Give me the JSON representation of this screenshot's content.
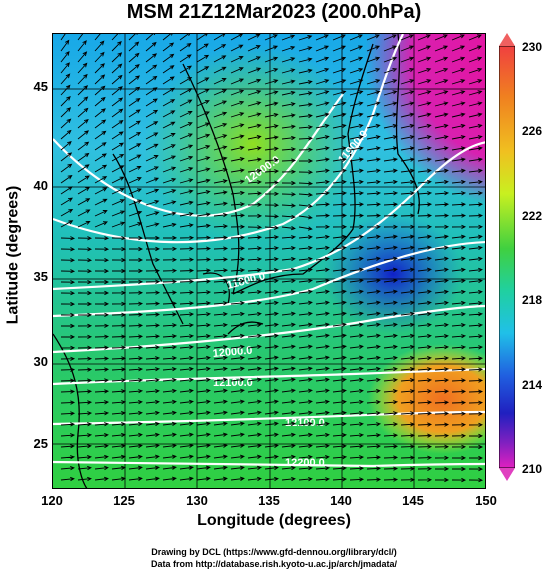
{
  "title": "MSM 21Z12Mar2023 (200.0hPa)",
  "xaxis": {
    "label": "Longitude (degrees)",
    "ticks": [
      "120",
      "125",
      "130",
      "135",
      "140",
      "145",
      "150"
    ]
  },
  "yaxis": {
    "label": "Latitude  (degrees)",
    "ticks": [
      "45",
      "40",
      "35",
      "30",
      "25"
    ]
  },
  "colorbar": {
    "ticks": [
      "230",
      "226",
      "222",
      "218",
      "214",
      "210"
    ]
  },
  "contour_labels": [
    "12000.0",
    "11900.0",
    "11800.0",
    "12000.0",
    "12100.0",
    "12100.0",
    "12200.0"
  ],
  "credits": {
    "line1": "Drawing by DCL (https://www.gfd-dennou.org/library/dcl/)",
    "line2": "Data from http://database.rish.kyoto-u.ac.jp/arch/jmadata/"
  },
  "colors": {
    "magenta": "#e8109c",
    "blue": "#1a2ad8",
    "cyan": "#18c8e8",
    "green": "#22d040",
    "yellow": "#d8f020",
    "orange": "#f07820"
  }
}
